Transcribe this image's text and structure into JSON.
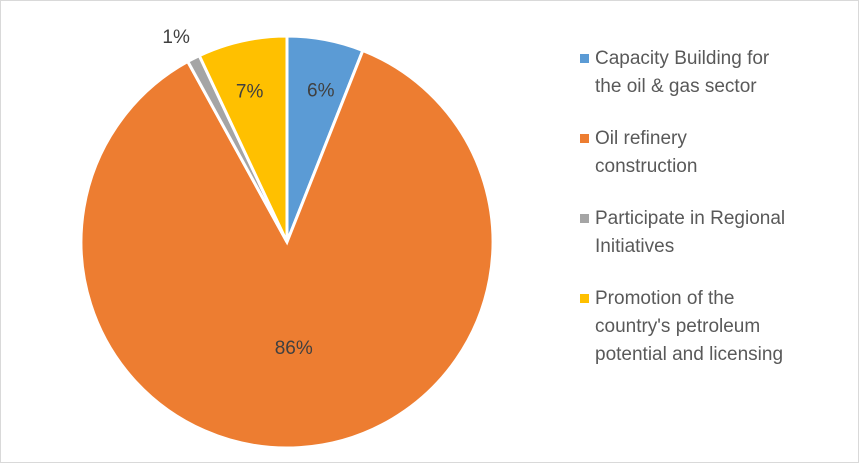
{
  "chart_data": {
    "type": "pie",
    "categories": [
      "Capacity Building for the oil & gas sector",
      "Oil refinery construction",
      "Participate in Regional Initiatives",
      "Promotion of the country's petroleum potential and licensing"
    ],
    "values": [
      6,
      86,
      1,
      7
    ],
    "data_labels": [
      "6%",
      "86%",
      "1%",
      "7%"
    ],
    "colors": [
      "#5b9bd5",
      "#ed7d31",
      "#a5a5a5",
      "#ffc000"
    ],
    "legend_position": "right",
    "legend_lines": [
      [
        "Capacity Building for",
        "the oil & gas sector"
      ],
      [
        "Oil refinery",
        "construction"
      ],
      [
        "Participate in Regional",
        "Initiatives"
      ],
      [
        "Promotion of the",
        "country's petroleum",
        "potential and licensing"
      ]
    ]
  }
}
